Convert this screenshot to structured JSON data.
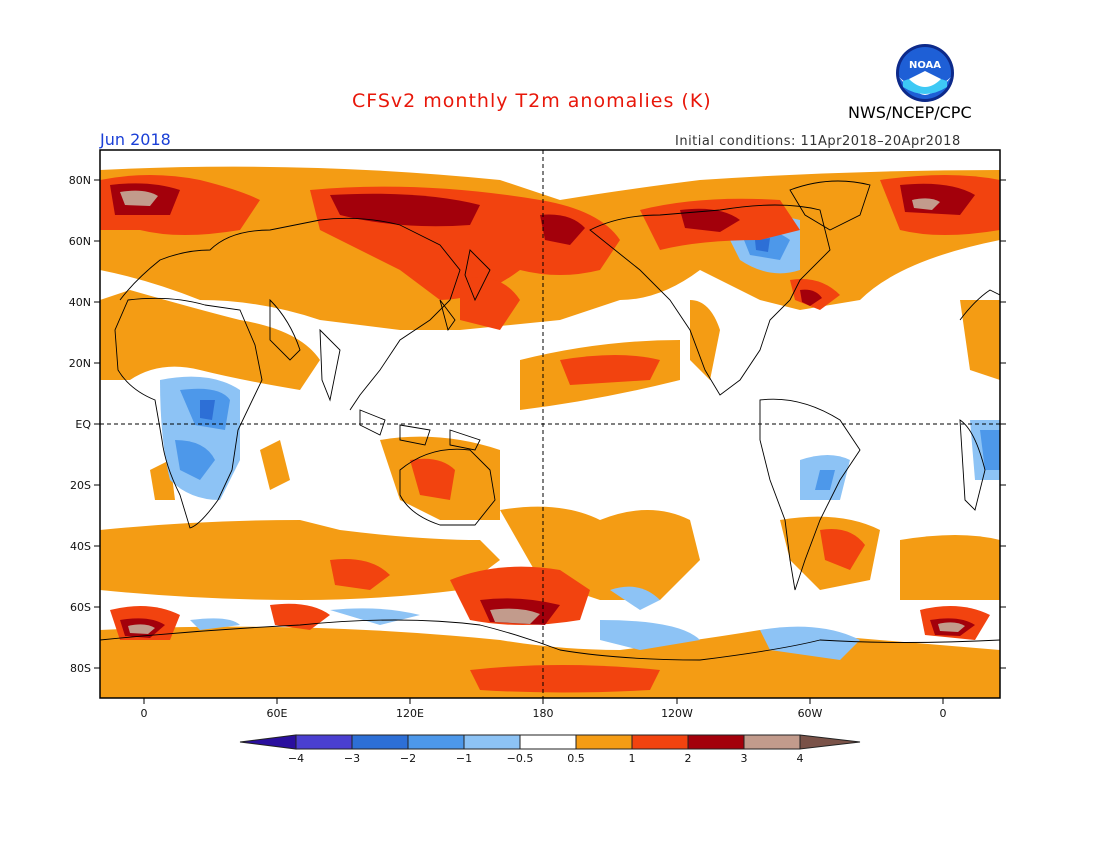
{
  "header": {
    "title": "CFSv2 monthly T2m anomalies (K)",
    "month": "Jun 2018",
    "initial_conditions": "Initial conditions: 11Apr2018–20Apr2018",
    "org": "NWS/NCEP/CPC",
    "logo_text": "NOAA"
  },
  "map": {
    "lat_ticks": [
      "80N",
      "60N",
      "40N",
      "20N",
      "EQ",
      "20S",
      "40S",
      "60S",
      "80S"
    ],
    "lon_ticks": [
      "0",
      "60E",
      "120E",
      "180",
      "120W",
      "60W",
      "0"
    ]
  },
  "colorbar": {
    "labels": [
      "−4",
      "−3",
      "−2",
      "−1",
      "−0.5",
      "0.5",
      "1",
      "2",
      "3",
      "4"
    ],
    "colors": [
      "#2a0f9e",
      "#4a3fd0",
      "#2d6fd6",
      "#4d98ea",
      "#8dc3f5",
      "#ffffff",
      "#f49c14",
      "#f2430f",
      "#a3000b",
      "#c29b8c",
      "#7a5248"
    ]
  },
  "anomaly_colors": {
    "warm_1": "#f49c14",
    "warm_2": "#f2430f",
    "warm_3": "#a3000b",
    "warm_4": "#c29b8c",
    "cool_1": "#8dc3f5",
    "cool_2": "#4d98ea",
    "cool_3": "#2d6fd6",
    "cool_4": "#4a3fd0"
  }
}
